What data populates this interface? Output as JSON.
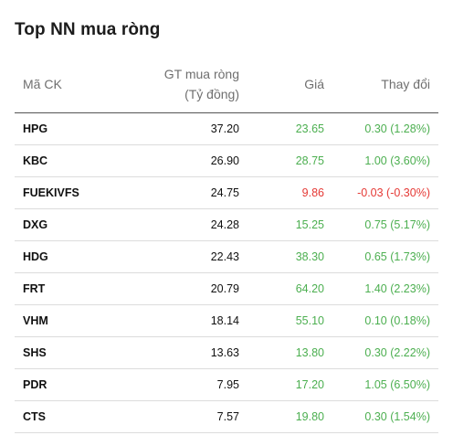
{
  "title": "Top NN mua ròng",
  "colors": {
    "up": "#4caf50",
    "down": "#e53935"
  },
  "headers": {
    "code": "Mã CK",
    "value_line1": "GT mua ròng",
    "value_line2": "(Tỷ đồng)",
    "price": "Giá",
    "change": "Thay đổi"
  },
  "rows": [
    {
      "code": "HPG",
      "value": "37.20",
      "price": "23.65",
      "change": "0.30 (1.28%)",
      "trend": "up"
    },
    {
      "code": "KBC",
      "value": "26.90",
      "price": "28.75",
      "change": "1.00 (3.60%)",
      "trend": "up"
    },
    {
      "code": "FUEKIVFS",
      "value": "24.75",
      "price": "9.86",
      "change": "-0.03 (-0.30%)",
      "trend": "down"
    },
    {
      "code": "DXG",
      "value": "24.28",
      "price": "15.25",
      "change": "0.75 (5.17%)",
      "trend": "up"
    },
    {
      "code": "HDG",
      "value": "22.43",
      "price": "38.30",
      "change": "0.65 (1.73%)",
      "trend": "up"
    },
    {
      "code": "FRT",
      "value": "20.79",
      "price": "64.20",
      "change": "1.40 (2.23%)",
      "trend": "up"
    },
    {
      "code": "VHM",
      "value": "18.14",
      "price": "55.10",
      "change": "0.10 (0.18%)",
      "trend": "up"
    },
    {
      "code": "SHS",
      "value": "13.63",
      "price": "13.80",
      "change": "0.30 (2.22%)",
      "trend": "up"
    },
    {
      "code": "PDR",
      "value": "7.95",
      "price": "17.20",
      "change": "1.05 (6.50%)",
      "trend": "up"
    },
    {
      "code": "CTS",
      "value": "7.57",
      "price": "19.80",
      "change": "0.30 (1.54%)",
      "trend": "up"
    }
  ]
}
